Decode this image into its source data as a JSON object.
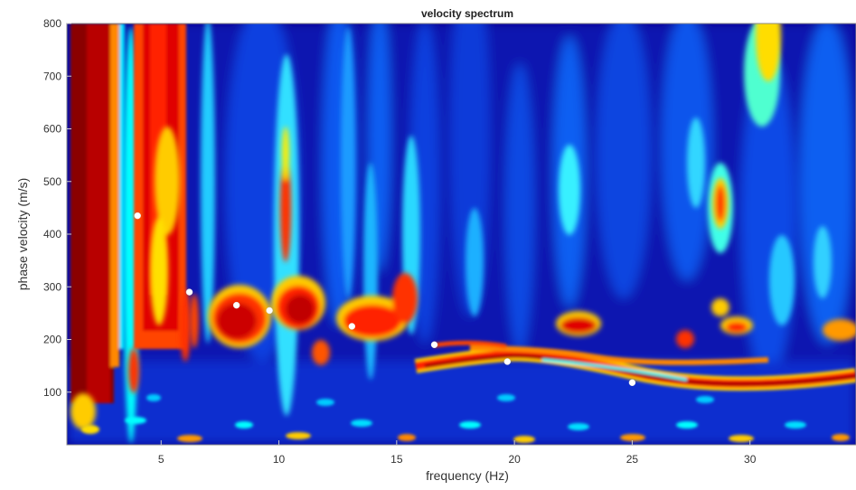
{
  "chart_data": {
    "type": "heatmap",
    "title": "velocity spectrum",
    "xlabel": "frequency (Hz)",
    "ylabel": "phase velocity (m/s)",
    "xlim": [
      1,
      34.5
    ],
    "ylim": [
      0,
      800
    ],
    "x_ticks": [
      5,
      10,
      15,
      20,
      25,
      30
    ],
    "y_ticks": [
      100,
      200,
      300,
      400,
      500,
      600,
      700,
      800
    ],
    "colormap": [
      "#00008f",
      "#0000ff",
      "#00ffff",
      "#ffff00",
      "#ff0000",
      "#800000"
    ],
    "picked_points": [
      {
        "x": 4.0,
        "y": 435
      },
      {
        "x": 6.2,
        "y": 290
      },
      {
        "x": 8.2,
        "y": 265
      },
      {
        "x": 9.6,
        "y": 255
      },
      {
        "x": 13.1,
        "y": 225
      },
      {
        "x": 16.6,
        "y": 190
      },
      {
        "x": 19.7,
        "y": 158
      },
      {
        "x": 25.0,
        "y": 118
      }
    ],
    "grid": false,
    "legend": "none"
  }
}
